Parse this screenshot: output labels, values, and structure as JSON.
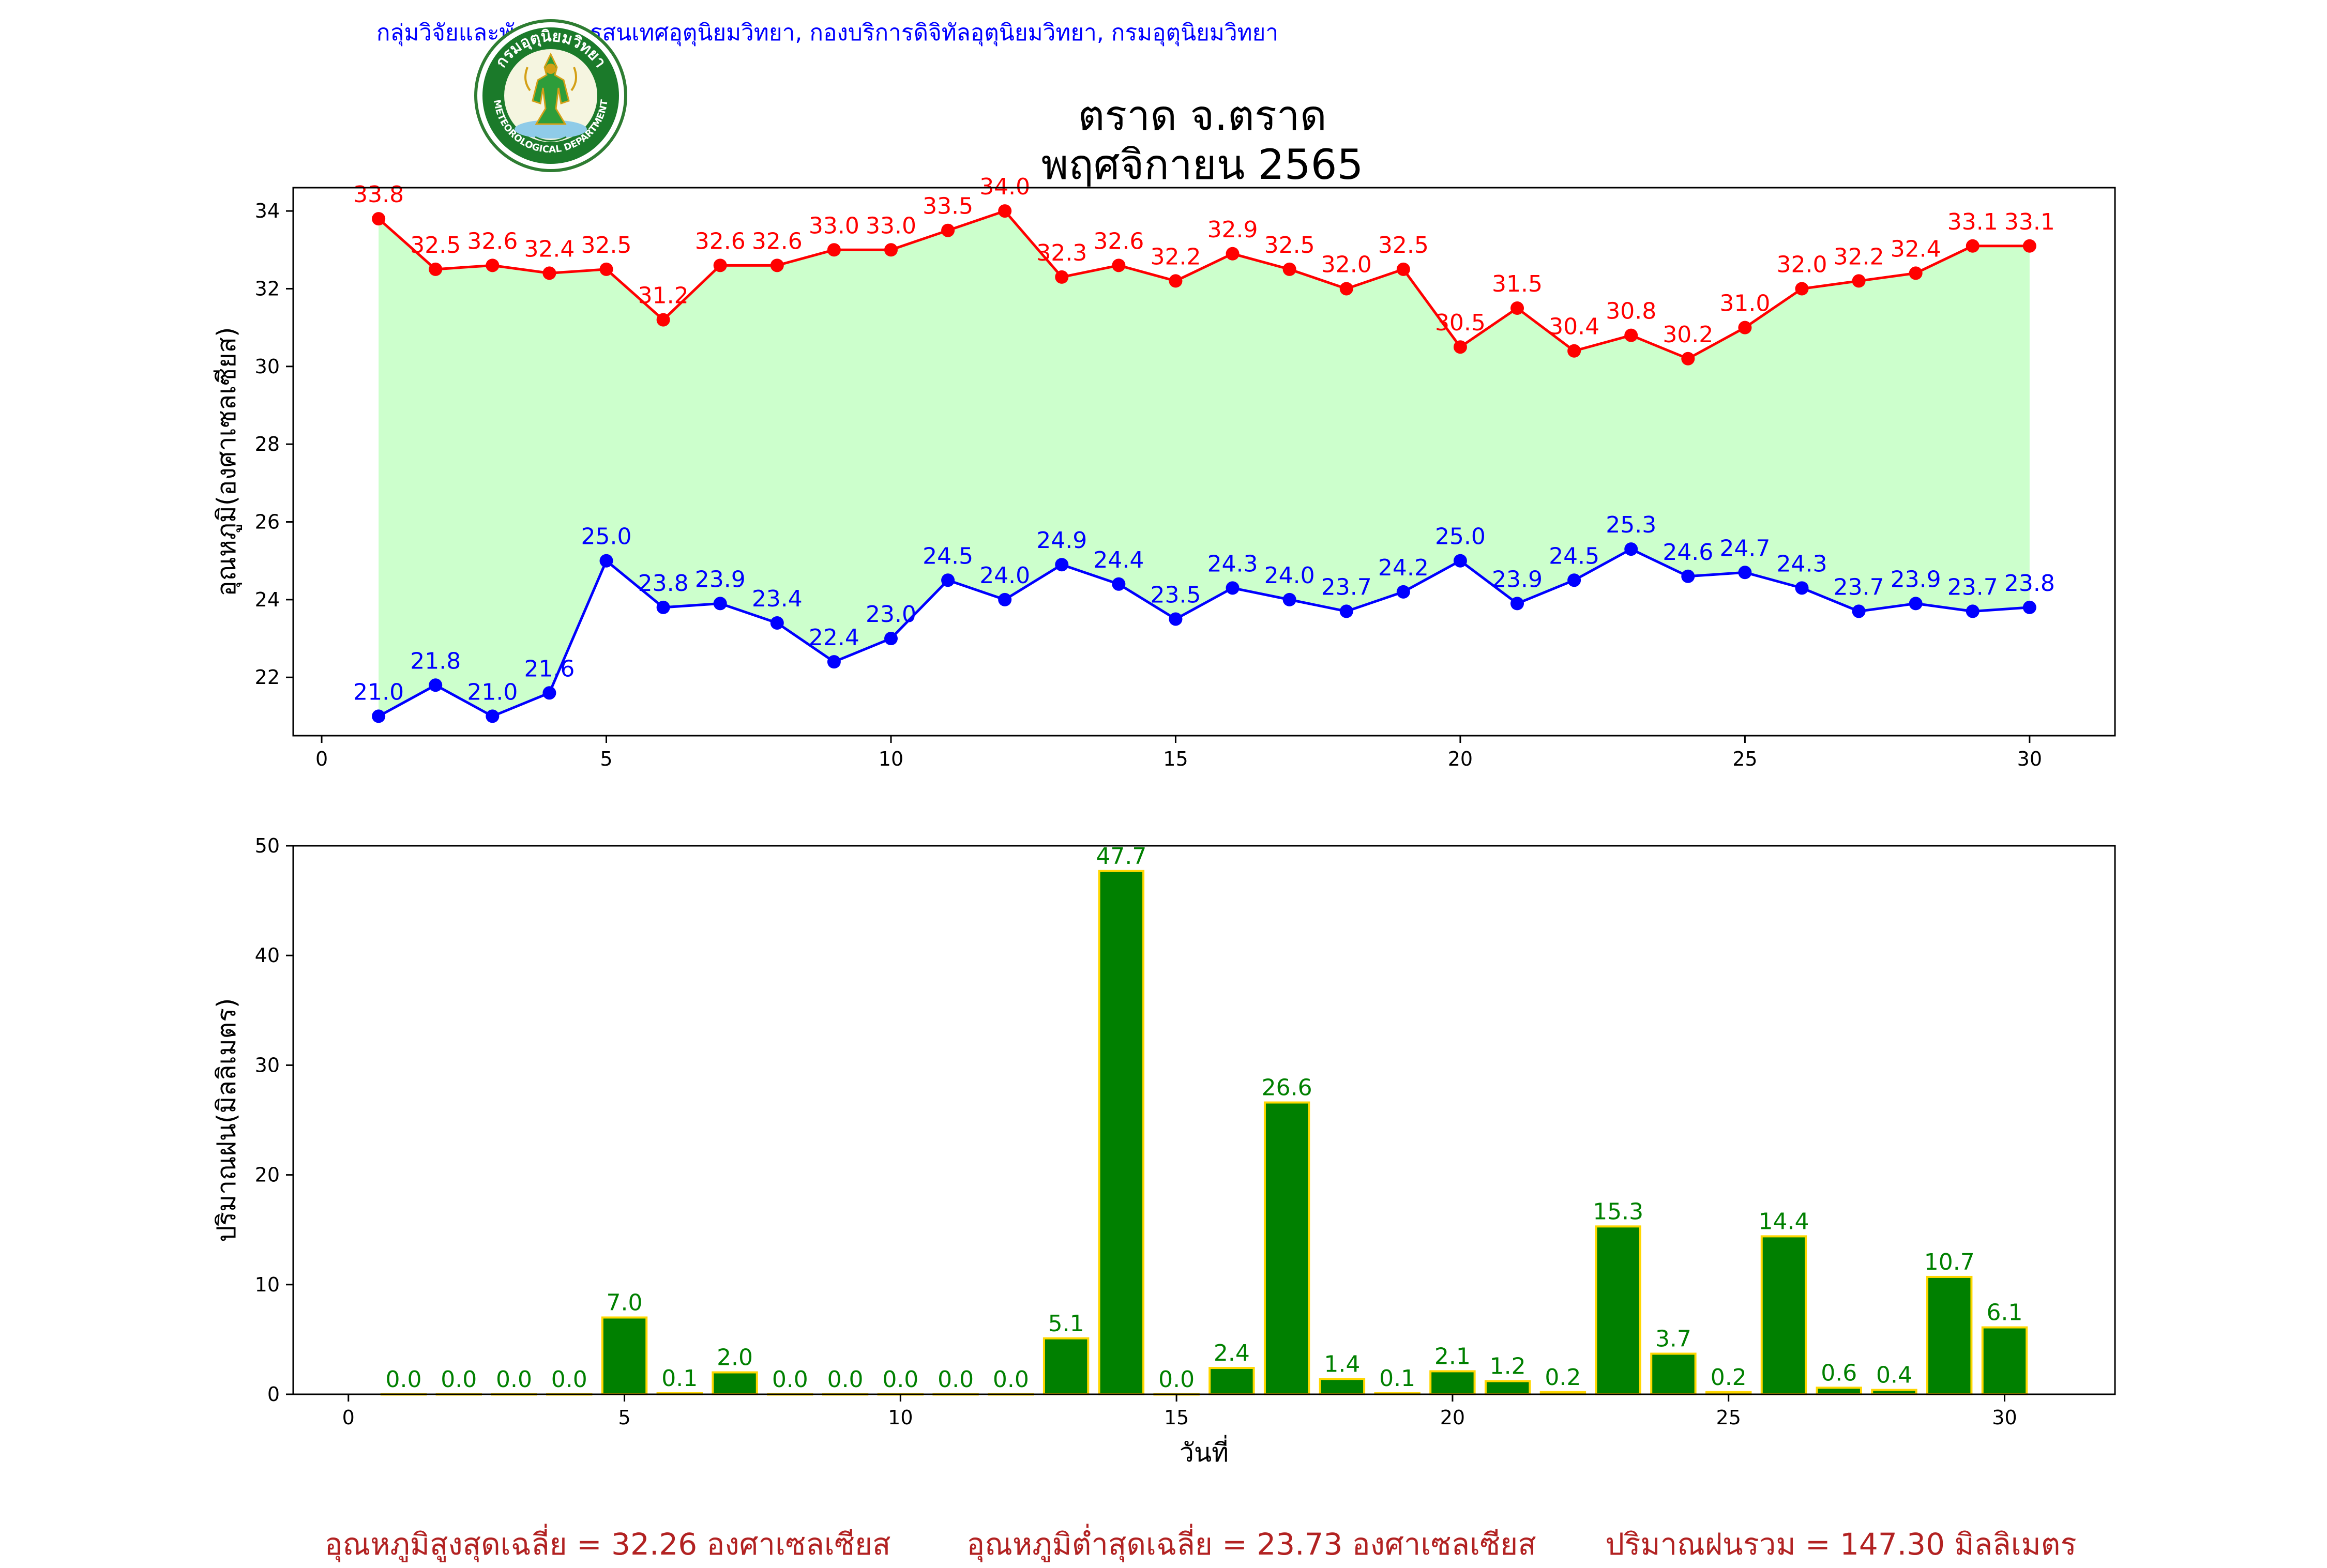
{
  "header": {
    "org_text": "กลุ่มวิจัยและพัฒนาสารสนเทศอุตุนิยมวิทยา, กองบริการดิจิทัลอุตุนิยมวิทยา, กรมอุตุนิยมวิทยา",
    "title_line1": "ตราด จ.ตราด",
    "title_line2": "พฤศจิกายน 2565",
    "logo_icon": "meteorological-department-seal-icon",
    "logo_text_top": "กรมอุตุนิยมวิทยา",
    "logo_text_bottom": "METEOROLOGICAL DEPARTMENT"
  },
  "colors": {
    "max_line": "#ff0000",
    "min_line": "#0000ff",
    "band_fill": "#ccffcc",
    "bar_fill": "#008000",
    "bar_edge": "#ffd700",
    "bar_label": "#008000",
    "header": "#0000ff",
    "footer": "#b22222"
  },
  "chart_data": [
    {
      "type": "line",
      "ylabel": "อุณหภูมิ(องศาเซลเซียส)",
      "xlim": [
        -0.5,
        31.5
      ],
      "ylim": [
        20.5,
        34.6
      ],
      "xticks": [
        0,
        5,
        10,
        15,
        20,
        25,
        30
      ],
      "yticks": [
        22,
        24,
        26,
        28,
        30,
        32,
        34
      ],
      "grid": false,
      "x": [
        1,
        2,
        3,
        4,
        5,
        6,
        7,
        8,
        9,
        10,
        11,
        12,
        13,
        14,
        15,
        16,
        17,
        18,
        19,
        20,
        21,
        22,
        23,
        24,
        25,
        26,
        27,
        28,
        29,
        30
      ],
      "series": [
        {
          "key": "max",
          "values": [
            33.8,
            32.5,
            32.6,
            32.4,
            32.5,
            31.2,
            32.6,
            32.6,
            33.0,
            33.0,
            33.5,
            34.0,
            32.3,
            32.6,
            32.2,
            32.9,
            32.5,
            32.0,
            32.5,
            30.5,
            31.5,
            30.4,
            30.8,
            30.2,
            31.0,
            32.0,
            32.2,
            32.4,
            33.1,
            33.1
          ],
          "labels": [
            "33.8",
            "32.5",
            "32.6",
            "32.4",
            "32.5",
            "31.2",
            "32.6",
            "32.6",
            "33.0",
            "33.0",
            "33.5",
            "34.0",
            "32.3",
            "32.6",
            "32.2",
            "32.9",
            "32.5",
            "32.0",
            "32.5",
            "30.5",
            "31.5",
            "30.4",
            "30.8",
            "30.2",
            "31.0",
            "32.0",
            "32.2",
            "32.4",
            "33.1",
            "33.1"
          ]
        },
        {
          "key": "min",
          "values": [
            21.0,
            21.8,
            21.0,
            21.6,
            25.0,
            23.8,
            23.9,
            23.4,
            22.4,
            23.0,
            24.5,
            24.0,
            24.9,
            24.4,
            23.5,
            24.3,
            24.0,
            23.7,
            24.2,
            25.0,
            23.9,
            24.5,
            25.3,
            24.6,
            24.7,
            24.3,
            23.7,
            23.9,
            23.7,
            23.8
          ],
          "labels": [
            "21.0",
            "21.8",
            "21.0",
            "21.6",
            "25.0",
            "23.8",
            "23.9",
            "23.4",
            "22.4",
            "23.0",
            "24.5",
            "24.0",
            "24.9",
            "24.4",
            "23.5",
            "24.3",
            "24.0",
            "23.7",
            "24.2",
            "25.0",
            "23.9",
            "24.5",
            "25.3",
            "24.6",
            "24.7",
            "24.3",
            "23.7",
            "23.9",
            "23.7",
            "23.8"
          ]
        }
      ]
    },
    {
      "type": "bar",
      "ylabel": "ปริมาณฝน(มิลลิเมตร)",
      "xlabel": "วันที่",
      "xlim": [
        -1,
        32
      ],
      "ylim": [
        0,
        50
      ],
      "xticks": [
        0,
        5,
        10,
        15,
        20,
        25,
        30
      ],
      "yticks": [
        0,
        10,
        20,
        30,
        40,
        50
      ],
      "grid": false,
      "categories": [
        1,
        2,
        3,
        4,
        5,
        6,
        7,
        8,
        9,
        10,
        11,
        12,
        13,
        14,
        15,
        16,
        17,
        18,
        19,
        20,
        21,
        22,
        23,
        24,
        25,
        26,
        27,
        28,
        29,
        30
      ],
      "values": [
        0.0,
        0.0,
        0.0,
        0.0,
        7.0,
        0.1,
        2.0,
        0.0,
        0.0,
        0.0,
        0.0,
        0.0,
        5.1,
        47.7,
        0.0,
        2.4,
        26.6,
        1.4,
        0.1,
        2.1,
        1.2,
        0.2,
        15.3,
        3.7,
        0.2,
        14.4,
        0.6,
        0.4,
        10.7,
        6.1
      ],
      "labels": [
        "0.0",
        "0.0",
        "0.0",
        "0.0",
        "7.0",
        "0.1",
        "2.0",
        "0.0",
        "0.0",
        "0.0",
        "0.0",
        "0.0",
        "5.1",
        "47.7",
        "0.0",
        "2.4",
        "26.6",
        "1.4",
        "0.1",
        "2.1",
        "1.2",
        "0.2",
        "15.3",
        "3.7",
        "0.2",
        "14.4",
        "0.6",
        "0.4",
        "10.7",
        "6.1"
      ]
    }
  ],
  "footer": {
    "avg_max": "อุณหภูมิสูงสุดเฉลี่ย = 32.26 องศาเซลเซียส",
    "avg_min": "อุณหภูมิต่ำสุดเฉลี่ย = 23.73 องศาเซลเซียส",
    "rain_total": "ปริมาณฝนรวม = 147.30 มิลลิเมตร"
  }
}
